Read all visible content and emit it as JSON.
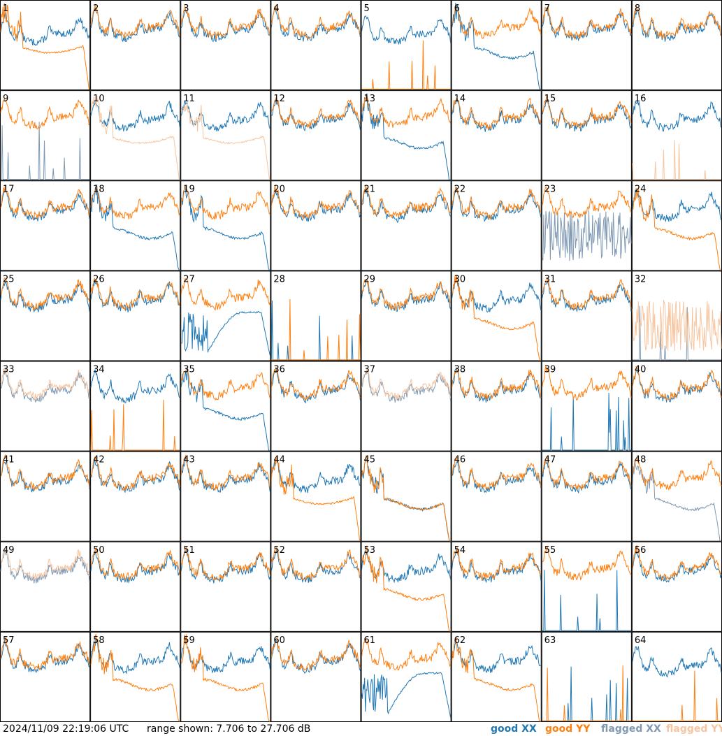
{
  "footer": {
    "timestamp": "2024/11/09 22:19:06 UTC",
    "range": "range shown: 7.706 to 27.706 dB"
  },
  "chart_data": {
    "type": "line",
    "grid_rows": 8,
    "grid_cols": 8,
    "y_range_db": [
      7.706,
      27.706
    ],
    "legend_placement": "bottom-right",
    "legend": [
      {
        "key": "good_xx",
        "label": "good XX",
        "color": "#1f77b4"
      },
      {
        "key": "good_yy",
        "label": "good YY",
        "color": "#ff7f0e"
      },
      {
        "key": "flagged_xx",
        "label": "flagged XX",
        "color": "#7f99b3"
      },
      {
        "key": "flagged_yy",
        "label": "flagged YY",
        "color": "#f7c59f"
      }
    ],
    "panels": [
      {
        "n": "1",
        "xx": "a",
        "yy": "f"
      },
      {
        "n": "2",
        "xx": "n",
        "yy": "n"
      },
      {
        "n": "3",
        "xx": "n",
        "yy": "n"
      },
      {
        "n": "4",
        "xx": "n",
        "yy": "n"
      },
      {
        "n": "5",
        "xx": "a",
        "yy": "s"
      },
      {
        "n": "6",
        "xx": "d",
        "yy": "n"
      },
      {
        "n": "7",
        "xx": "n",
        "yy": "n"
      },
      {
        "n": "8",
        "xx": "n",
        "yy": "n"
      },
      {
        "n": "9",
        "xx": "s",
        "yy": "n",
        "flag_xx": true
      },
      {
        "n": "10",
        "xx": "n",
        "yy": "f",
        "flag_yy": true
      },
      {
        "n": "11",
        "xx": "n",
        "yy": "f",
        "flag_yy": true
      },
      {
        "n": "12",
        "xx": "n",
        "yy": "n"
      },
      {
        "n": "13",
        "xx": "d",
        "yy": "n"
      },
      {
        "n": "14",
        "xx": "n",
        "yy": "n"
      },
      {
        "n": "15",
        "xx": "n",
        "yy": "n"
      },
      {
        "n": "16",
        "xx": "n",
        "yy": "s",
        "flag_yy": true
      },
      {
        "n": "17",
        "xx": "n",
        "yy": "n"
      },
      {
        "n": "18",
        "xx": "d",
        "yy": "n"
      },
      {
        "n": "19",
        "xx": "d",
        "yy": "n"
      },
      {
        "n": "20",
        "xx": "n",
        "yy": "n"
      },
      {
        "n": "21",
        "xx": "n",
        "yy": "n"
      },
      {
        "n": "22",
        "xx": "n",
        "yy": "n"
      },
      {
        "n": "23",
        "xx": "z",
        "yy": "n",
        "flag_xx": true
      },
      {
        "n": "24",
        "xx": "n",
        "yy": "d"
      },
      {
        "n": "25",
        "xx": "n",
        "yy": "n"
      },
      {
        "n": "26",
        "xx": "n",
        "yy": "n"
      },
      {
        "n": "27",
        "xx": "b",
        "yy": "n"
      },
      {
        "n": "28",
        "xx": "s",
        "yy": "s"
      },
      {
        "n": "29",
        "xx": "n",
        "yy": "n"
      },
      {
        "n": "30",
        "xx": "n",
        "yy": "d"
      },
      {
        "n": "31",
        "xx": "n",
        "yy": "n"
      },
      {
        "n": "32",
        "xx": "s",
        "yy": "z",
        "flag_xx": true,
        "flag_yy": true
      },
      {
        "n": "33",
        "xx": "n",
        "yy": "n",
        "flag_xx": true,
        "flag_yy": true
      },
      {
        "n": "34",
        "xx": "n",
        "yy": "s"
      },
      {
        "n": "35",
        "xx": "d",
        "yy": "n"
      },
      {
        "n": "36",
        "xx": "n",
        "yy": "n"
      },
      {
        "n": "37",
        "xx": "n",
        "yy": "n",
        "flag_xx": true,
        "flag_yy": true
      },
      {
        "n": "38",
        "xx": "n",
        "yy": "n"
      },
      {
        "n": "39",
        "xx": "s",
        "yy": "n"
      },
      {
        "n": "40",
        "xx": "n",
        "yy": "n"
      },
      {
        "n": "41",
        "xx": "n",
        "yy": "n"
      },
      {
        "n": "42",
        "xx": "n",
        "yy": "n"
      },
      {
        "n": "43",
        "xx": "n",
        "yy": "n"
      },
      {
        "n": "44",
        "xx": "n",
        "yy": "f"
      },
      {
        "n": "45",
        "xx": "d",
        "yy": "d"
      },
      {
        "n": "46",
        "xx": "n",
        "yy": "n"
      },
      {
        "n": "47",
        "xx": "n",
        "yy": "n"
      },
      {
        "n": "48",
        "xx": "d",
        "yy": "n",
        "flag_xx": true
      },
      {
        "n": "49",
        "xx": "n",
        "yy": "n",
        "flag_xx": true,
        "flag_yy": true
      },
      {
        "n": "50",
        "xx": "n",
        "yy": "n"
      },
      {
        "n": "51",
        "xx": "n",
        "yy": "n"
      },
      {
        "n": "52",
        "xx": "n",
        "yy": "n"
      },
      {
        "n": "53",
        "xx": "n",
        "yy": "d"
      },
      {
        "n": "54",
        "xx": "n",
        "yy": "n"
      },
      {
        "n": "55",
        "xx": "s",
        "yy": "n"
      },
      {
        "n": "56",
        "xx": "n",
        "yy": "n"
      },
      {
        "n": "57",
        "xx": "n",
        "yy": "n"
      },
      {
        "n": "58",
        "xx": "n",
        "yy": "d"
      },
      {
        "n": "59",
        "xx": "n",
        "yy": "d"
      },
      {
        "n": "60",
        "xx": "n",
        "yy": "n"
      },
      {
        "n": "61",
        "xx": "b",
        "yy": "n"
      },
      {
        "n": "62",
        "xx": "n",
        "yy": "d"
      },
      {
        "n": "63",
        "xx": "s",
        "yy": "s"
      },
      {
        "n": "64",
        "xx": "a",
        "yy": "s"
      }
    ]
  }
}
